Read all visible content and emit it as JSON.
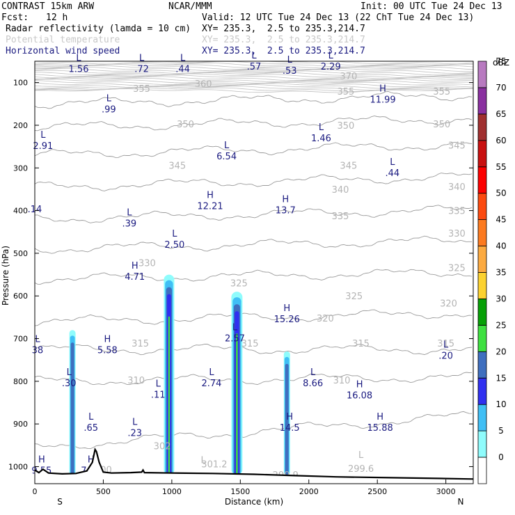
{
  "header": {
    "model": "CONTRAST 15km ARW",
    "org": "NCAR/MMM",
    "init": "Init: 00 UTC Tue 24 Dec 13",
    "fcst_label": "Fcst:",
    "fcst_value": "12 h",
    "valid": "Valid: 12 UTC Tue 24 Dec 13 (22 ChT Tue 24 Dec 13)",
    "fields": [
      {
        "name": "Radar reflectivity (lamda = 10 cm)",
        "xy": "XY= 235.3,  2.5 to 235.3,214.7",
        "color": "#000000"
      },
      {
        "name": "Potential temperature",
        "xy": "XY= 235.3,  2.5 to 235.3,214.7",
        "color": "#c8c8c8"
      },
      {
        "name": "Horizontal wind speed",
        "xy": "XY= 235.3,  2.5 to 235.3,214.7",
        "color": "#1a1a80"
      }
    ]
  },
  "chart_data": {
    "type": "contour",
    "xlabel": "Distance (km)",
    "ylabel": "Pressure (hPa)",
    "xlim": [
      0,
      3200
    ],
    "ylim": [
      1040,
      50
    ],
    "x_ticks": [
      0,
      500,
      1000,
      1500,
      2000,
      2500,
      3000
    ],
    "x_tick_labels": [
      "0",
      "500",
      "1000",
      "1500",
      "2000",
      "2500",
      "3000"
    ],
    "y_ticks": [
      100,
      200,
      300,
      400,
      500,
      600,
      700,
      800,
      900,
      1000
    ],
    "y_tick_labels": [
      "100",
      "200",
      "300",
      "400",
      "500",
      "600",
      "700",
      "800",
      "900",
      "1000"
    ],
    "endpoint_labels": {
      "left": "S",
      "right": "N"
    },
    "colorbar": {
      "unit": "dBZ",
      "levels": [
        0,
        5,
        10,
        15,
        20,
        25,
        30,
        35,
        40,
        45,
        50,
        55,
        60,
        65,
        70,
        75
      ],
      "level_labels": [
        "0",
        "5",
        "10",
        "15",
        "20",
        "25",
        "30",
        "35",
        "40",
        "45",
        "50",
        "55",
        "60",
        "65",
        "70",
        "75"
      ],
      "colors": [
        "#ffffff",
        "#8ffcfc",
        "#40bff5",
        "#3030f0",
        "#3f6fbf",
        "#3ee040",
        "#06a006",
        "#fcd230",
        "#fcaa40",
        "#fc7a20",
        "#fc4a10",
        "#fc0000",
        "#c81010",
        "#a03030",
        "#8a30a0",
        "#b87ac0"
      ]
    },
    "theta_labels": [
      {
        "x": 1230,
        "p": 110,
        "text": "360"
      },
      {
        "x": 2290,
        "p": 92,
        "text": "370"
      },
      {
        "x": 780,
        "p": 122,
        "text": "355"
      },
      {
        "x": 2270,
        "p": 128,
        "text": "355"
      },
      {
        "x": 2970,
        "p": 128,
        "text": "355"
      },
      {
        "x": 1100,
        "p": 205,
        "text": "350"
      },
      {
        "x": 2270,
        "p": 208,
        "text": "350"
      },
      {
        "x": 2970,
        "p": 205,
        "text": "350"
      },
      {
        "x": 3080,
        "p": 255,
        "text": "345"
      },
      {
        "x": 1040,
        "p": 302,
        "text": "345"
      },
      {
        "x": 2290,
        "p": 302,
        "text": "345"
      },
      {
        "x": 3080,
        "p": 352,
        "text": "340"
      },
      {
        "x": 2230,
        "p": 358,
        "text": "340"
      },
      {
        "x": 2230,
        "p": 420,
        "text": "335"
      },
      {
        "x": 3080,
        "p": 408,
        "text": "335"
      },
      {
        "x": 3080,
        "p": 461,
        "text": "330"
      },
      {
        "x": 820,
        "p": 530,
        "text": "330"
      },
      {
        "x": 3080,
        "p": 542,
        "text": "325"
      },
      {
        "x": 1490,
        "p": 578,
        "text": "325"
      },
      {
        "x": 2330,
        "p": 608,
        "text": "325"
      },
      {
        "x": 3020,
        "p": 625,
        "text": "320"
      },
      {
        "x": 2120,
        "p": 660,
        "text": "320"
      },
      {
        "x": 770,
        "p": 719,
        "text": "315"
      },
      {
        "x": 1570,
        "p": 719,
        "text": "315"
      },
      {
        "x": 2380,
        "p": 719,
        "text": "315"
      },
      {
        "x": 3000,
        "p": 719,
        "text": "315"
      },
      {
        "x": 740,
        "p": 805,
        "text": "310"
      },
      {
        "x": 2240,
        "p": 805,
        "text": "310"
      },
      {
        "x": 930,
        "p": 959,
        "text": "302"
      },
      {
        "x": 1310,
        "p": 1002,
        "text": "301.2"
      },
      {
        "x": 1830,
        "p": 1027,
        "text": "299.9"
      },
      {
        "x": 2380,
        "p": 1012,
        "text": "299.6"
      },
      {
        "x": 500,
        "p": 1015,
        "text": "300"
      }
    ],
    "theta_extrema": [
      {
        "x": 1230,
        "p": 992,
        "text": "L"
      },
      {
        "x": 2380,
        "p": 980,
        "text": "L"
      }
    ],
    "wind_extrema": [
      {
        "x": 320,
        "p": 72,
        "type": "L",
        "value": "1.56"
      },
      {
        "x": 780,
        "p": 72,
        "type": "L",
        "value": ".72"
      },
      {
        "x": 1080,
        "p": 72,
        "type": "L",
        "value": ".44"
      },
      {
        "x": 1600,
        "p": 66,
        "type": "L",
        "value": ".57"
      },
      {
        "x": 1860,
        "p": 76,
        "type": "L",
        "value": ".53"
      },
      {
        "x": 2160,
        "p": 66,
        "type": "L",
        "value": "2.29"
      },
      {
        "x": 2540,
        "p": 144,
        "type": "H",
        "value": "11.99"
      },
      {
        "x": 540,
        "p": 167,
        "type": "L",
        "value": ".99"
      },
      {
        "x": 60,
        "p": 252,
        "type": "L",
        "value": "2.91"
      },
      {
        "x": 2090,
        "p": 234,
        "type": "L",
        "value": "1.46"
      },
      {
        "x": 1400,
        "p": 277,
        "type": "L",
        "value": "6.54"
      },
      {
        "x": 2610,
        "p": 316,
        "type": "L",
        "value": ".44"
      },
      {
        "x": 0,
        "p": 401,
        "type": "",
        "value": ".14"
      },
      {
        "x": 690,
        "p": 434,
        "type": "L",
        "value": ".39"
      },
      {
        "x": 1280,
        "p": 393,
        "type": "H",
        "value": "12.21"
      },
      {
        "x": 1830,
        "p": 403,
        "type": "H",
        "value": "13.7"
      },
      {
        "x": 1020,
        "p": 484,
        "type": "L",
        "value": "2.50"
      },
      {
        "x": 730,
        "p": 559,
        "type": "H",
        "value": "4.71"
      },
      {
        "x": 1840,
        "p": 658,
        "type": "H",
        "value": "15.26"
      },
      {
        "x": 1460,
        "p": 703,
        "type": "L",
        "value": "2.57"
      },
      {
        "x": 20,
        "p": 731,
        "type": "L",
        "value": "38"
      },
      {
        "x": 530,
        "p": 731,
        "type": "H",
        "value": "5.58"
      },
      {
        "x": 3000,
        "p": 744,
        "type": "L",
        "value": ".20"
      },
      {
        "x": 250,
        "p": 808,
        "type": "L",
        "value": ".30"
      },
      {
        "x": 1290,
        "p": 808,
        "type": "L",
        "value": "2.74"
      },
      {
        "x": 2030,
        "p": 808,
        "type": "L",
        "value": "8.66"
      },
      {
        "x": 2370,
        "p": 837,
        "type": "H",
        "value": "16.08"
      },
      {
        "x": 900,
        "p": 835,
        "type": "L",
        "value": ".11"
      },
      {
        "x": 410,
        "p": 913,
        "type": "L",
        "value": ".65"
      },
      {
        "x": 730,
        "p": 925,
        "type": "L",
        "value": ".23"
      },
      {
        "x": 1860,
        "p": 913,
        "type": "H",
        "value": "14.5"
      },
      {
        "x": 2520,
        "p": 913,
        "type": "H",
        "value": "15.88"
      },
      {
        "x": 50,
        "p": 1013,
        "type": "H",
        "value": "9.55"
      },
      {
        "x": 410,
        "p": 1013,
        "type": "H",
        "value": "7.52"
      }
    ]
  }
}
